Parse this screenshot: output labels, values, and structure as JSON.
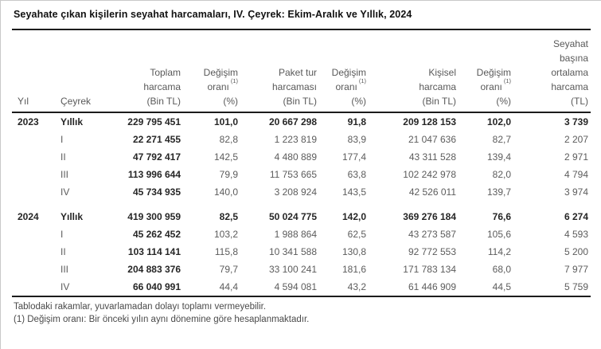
{
  "title": "Seyahate çıkan kişilerin seyahat harcamaları, IV. Çeyrek: Ekim-Aralık ve Yıllık, 2024",
  "table": {
    "headers": [
      {
        "lines": [
          "Yıl"
        ]
      },
      {
        "lines": [
          "Çeyrek"
        ]
      },
      {
        "lines": [
          "Toplam",
          "harcama",
          "(Bin TL)"
        ]
      },
      {
        "lines": [
          "Değişim",
          "oranı",
          "(%)"
        ],
        "sup": "(1)",
        "sup_line": 1
      },
      {
        "lines": [
          "Paket tur",
          "harcaması",
          "(Bin TL)"
        ]
      },
      {
        "lines": [
          "Değişim",
          "oranı",
          "(%)"
        ],
        "sup": "(1)",
        "sup_line": 1
      },
      {
        "lines": [
          "Kişisel",
          "harcama",
          "(Bin TL)"
        ]
      },
      {
        "lines": [
          "Değişim",
          "oranı",
          "(%)"
        ],
        "sup": "(1)",
        "sup_line": 1
      },
      {
        "lines": [
          "Seyahat",
          "başına",
          "ortalama",
          "harcama",
          "(TL)"
        ]
      }
    ],
    "groups": [
      {
        "year": "2023",
        "rows": [
          {
            "quarter": "Yıllık",
            "values": [
              "229 795 451",
              "101,0",
              "20 667 298",
              "91,8",
              "209 128 153",
              "102,0",
              "3 739"
            ]
          },
          {
            "quarter": "I",
            "values": [
              "22 271 455",
              "82,8",
              "1 223 819",
              "83,9",
              "21 047 636",
              "82,7",
              "2 207"
            ]
          },
          {
            "quarter": "II",
            "values": [
              "47 792 417",
              "142,5",
              "4 480 889",
              "177,4",
              "43 311 528",
              "139,4",
              "2 971"
            ]
          },
          {
            "quarter": "III",
            "values": [
              "113 996 644",
              "79,9",
              "11 753 665",
              "63,8",
              "102 242 978",
              "82,0",
              "4 794"
            ]
          },
          {
            "quarter": "IV",
            "values": [
              "45 734 935",
              "140,0",
              "3 208 924",
              "143,5",
              "42 526 011",
              "139,7",
              "3 974"
            ]
          }
        ]
      },
      {
        "year": "2024",
        "rows": [
          {
            "quarter": "Yıllık",
            "values": [
              "419 300 959",
              "82,5",
              "50 024 775",
              "142,0",
              "369 276 184",
              "76,6",
              "6 274"
            ]
          },
          {
            "quarter": "I",
            "values": [
              "45 262 452",
              "103,2",
              "1 988 864",
              "62,5",
              "43 273 587",
              "105,6",
              "4 593"
            ]
          },
          {
            "quarter": "II",
            "values": [
              "103 114 141",
              "115,8",
              "10 341 588",
              "130,8",
              "92 772 553",
              "114,2",
              "5 200"
            ]
          },
          {
            "quarter": "III",
            "values": [
              "204 883 376",
              "79,7",
              "33 100 241",
              "181,6",
              "171 783 134",
              "68,0",
              "7 977"
            ]
          },
          {
            "quarter": "IV",
            "values": [
              "66 040 991",
              "44,4",
              "4 594 081",
              "43,2",
              "61 446 909",
              "44,5",
              "5 759"
            ]
          }
        ]
      }
    ]
  },
  "footnotes": [
    "Tablodaki rakamlar, yuvarlamadan dolayı toplamı vermeyebilir.",
    "(1) Değişim oranı: Bir önceki yılın aynı dönemine göre hesaplanmaktadır."
  ]
}
